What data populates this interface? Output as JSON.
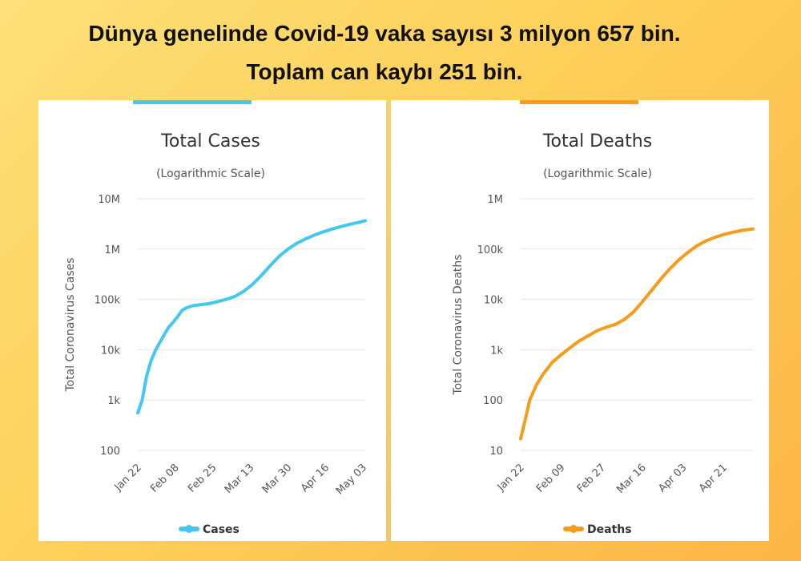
{
  "headline": {
    "line1": "Dünya genelinde Covid-19 vaka sayısı 3 milyon 657 bin.",
    "line2": "Toplam can kaybı 251 bin."
  },
  "chart_data": [
    {
      "type": "line",
      "title": "Total Cases",
      "subtitle": "(Logarithmic Scale)",
      "ylabel": "Total Coronavirus Cases",
      "yscale": "log",
      "ylim": [
        100,
        10000000
      ],
      "yticks": [
        100,
        1000,
        10000,
        100000,
        1000000,
        10000000
      ],
      "ytick_labels": [
        "100",
        "1k",
        "10k",
        "100k",
        "1M",
        "10M"
      ],
      "xlim": [
        0,
        103
      ],
      "xticks": [
        0,
        17,
        34,
        51,
        68,
        85,
        102
      ],
      "xtick_labels": [
        "Jan 22",
        "Feb 08",
        "Feb 25",
        "Mar 13",
        "Mar 30",
        "Apr 16",
        "May 03"
      ],
      "color": "#45c8f0",
      "series": [
        {
          "name": "Cases",
          "x": [
            0,
            2,
            4,
            6,
            8,
            10,
            12,
            14,
            16,
            17,
            18,
            20,
            22,
            25,
            28,
            32,
            36,
            40,
            44,
            48,
            52,
            56,
            60,
            64,
            68,
            72,
            76,
            80,
            84,
            88,
            92,
            96,
            100,
            103
          ],
          "values": [
            555,
            1000,
            3000,
            6000,
            9800,
            14000,
            20000,
            28000,
            35000,
            40000,
            45000,
            60000,
            68000,
            75000,
            78000,
            82000,
            90000,
            100000,
            115000,
            145000,
            200000,
            300000,
            470000,
            720000,
            1000000,
            1300000,
            1600000,
            1900000,
            2200000,
            2500000,
            2800000,
            3100000,
            3400000,
            3657000
          ]
        }
      ],
      "legend": "Cases",
      "legend_position": "bottom-center"
    },
    {
      "type": "line",
      "title": "Total Deaths",
      "subtitle": "(Logarithmic Scale)",
      "ylabel": "Total Coronavirus Deaths",
      "yscale": "log",
      "ylim": [
        10,
        1000000
      ],
      "yticks": [
        10,
        100,
        1000,
        10000,
        100000,
        1000000
      ],
      "ytick_labels": [
        "10",
        "100",
        "1k",
        "10k",
        "100k",
        "1M"
      ],
      "xlim": [
        0,
        103
      ],
      "xticks": [
        0,
        18,
        36,
        54,
        72,
        90
      ],
      "xtick_labels": [
        "Jan 22",
        "Feb 09",
        "Feb 27",
        "Mar 16",
        "Apr 03",
        "Apr 21"
      ],
      "color": "#f59c1a",
      "series": [
        {
          "name": "Deaths",
          "x": [
            0,
            2,
            4,
            7,
            10,
            14,
            18,
            22,
            26,
            30,
            34,
            38,
            42,
            46,
            50,
            54,
            58,
            62,
            66,
            70,
            74,
            78,
            82,
            86,
            90,
            94,
            98,
            103
          ],
          "values": [
            17,
            40,
            100,
            200,
            330,
            560,
            800,
            1100,
            1500,
            1900,
            2400,
            2800,
            3200,
            4000,
            5600,
            9000,
            15000,
            25000,
            40000,
            60000,
            85000,
            115000,
            145000,
            170000,
            195000,
            215000,
            235000,
            251000
          ]
        }
      ],
      "legend": "Deaths",
      "legend_position": "bottom-center"
    }
  ]
}
